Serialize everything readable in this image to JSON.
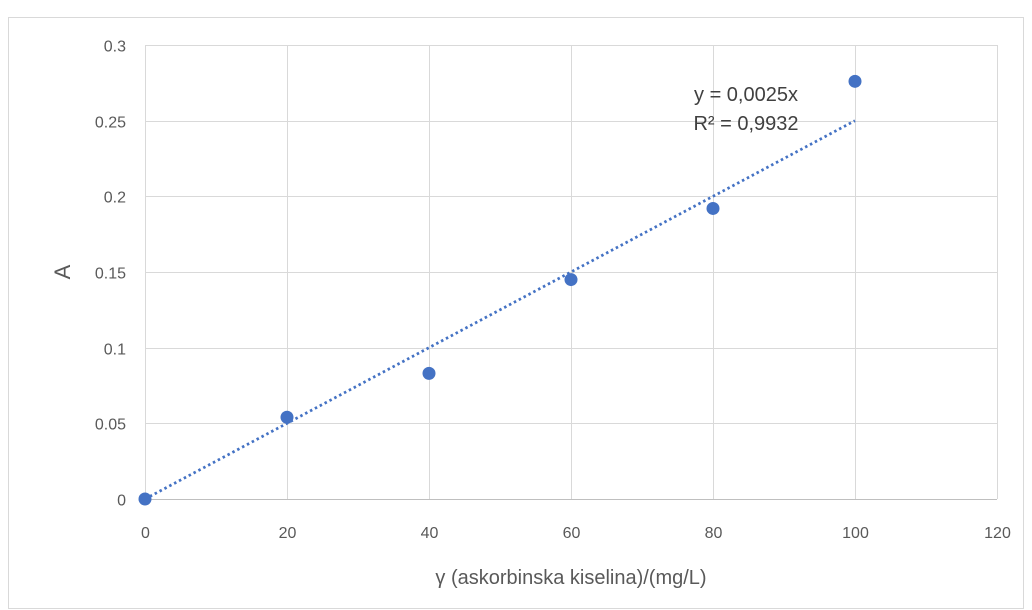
{
  "chart_data": {
    "type": "scatter",
    "x": [
      0,
      20,
      40,
      60,
      80,
      100
    ],
    "y": [
      0,
      0.054,
      0.083,
      0.145,
      0.192,
      0.276
    ],
    "xlabel": "γ (askorbinska kiselina)/(mg/L)",
    "ylabel": "A",
    "xlim": [
      0,
      120
    ],
    "ylim": [
      0,
      0.3
    ],
    "xticks": [
      "0",
      "20",
      "40",
      "60",
      "80",
      "100",
      "120"
    ],
    "yticks": [
      "0",
      "0.05",
      "0.1",
      "0.15",
      "0.2",
      "0.25",
      "0.3"
    ],
    "grid": true,
    "legend": "none",
    "trendline": {
      "type": "linear",
      "slope": 0.0025,
      "intercept": 0,
      "equation": "y = 0,0025x",
      "r_squared": "R² = 0,9932",
      "style": "dotted"
    },
    "colors": {
      "marker": "#4472C4",
      "trendline": "#4472C4",
      "gridline": "#D9D9D9",
      "axis_line": "#BFBFBF",
      "chart_border": "#D9D9D9"
    }
  }
}
